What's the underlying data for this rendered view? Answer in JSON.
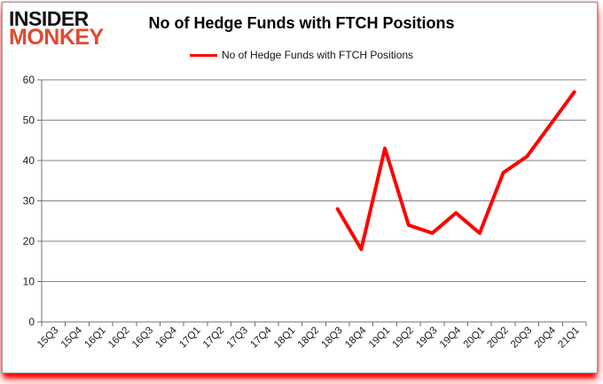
{
  "logo": {
    "line1": "INSIDER",
    "line2": "MONKEY",
    "color": "#e04a30"
  },
  "header": {
    "title": "No of Hedge Funds with FTCH Positions"
  },
  "legend": {
    "label": "No of Hedge Funds with FTCH Positions"
  },
  "chart_data": {
    "type": "line",
    "title": "No of Hedge Funds with FTCH Positions",
    "categories": [
      "15Q3",
      "15Q4",
      "16Q1",
      "16Q2",
      "16Q3",
      "16Q4",
      "17Q1",
      "17Q2",
      "17Q3",
      "17Q4",
      "18Q1",
      "18Q2",
      "18Q3",
      "18Q4",
      "19Q1",
      "19Q2",
      "19Q3",
      "19Q4",
      "20Q1",
      "20Q2",
      "20Q3",
      "20Q4",
      "21Q1"
    ],
    "series": [
      {
        "name": "No of Hedge Funds with FTCH Positions",
        "color": "#ff0000",
        "values": [
          null,
          null,
          null,
          null,
          null,
          null,
          null,
          null,
          null,
          null,
          null,
          null,
          28,
          18,
          43,
          24,
          22,
          27,
          22,
          37,
          41,
          49,
          57
        ]
      }
    ],
    "ylim": [
      0,
      60
    ],
    "yticks": [
      0,
      10,
      20,
      30,
      40,
      50,
      60
    ],
    "xlabel": "",
    "ylabel": "",
    "grid": true,
    "legend_position": "top",
    "x_tick_rotation": -45
  }
}
